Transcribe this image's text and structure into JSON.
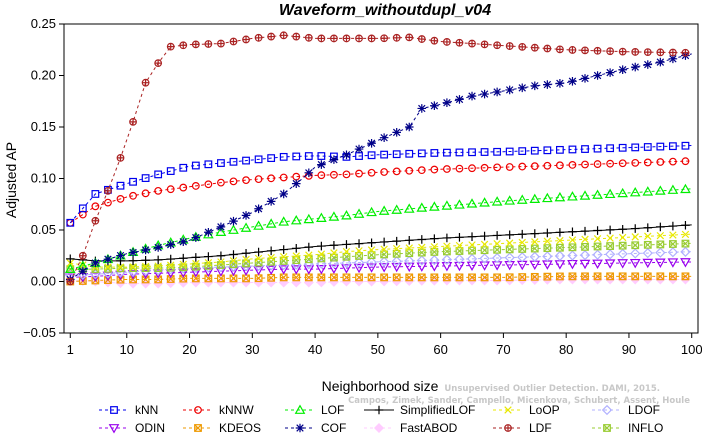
{
  "chart_data": {
    "type": "line",
    "title": "Waveform_withoutdupl_v04",
    "xlabel": "Neighborhood size",
    "ylabel": "Adjusted AP",
    "xlim": [
      0,
      101
    ],
    "ylim": [
      -0.05,
      0.25
    ],
    "x_ticks": [
      1,
      10,
      20,
      30,
      40,
      50,
      60,
      70,
      80,
      90,
      100
    ],
    "y_ticks": [
      -0.05,
      0.0,
      0.05,
      0.1,
      0.15,
      0.2,
      0.25
    ],
    "y_tick_labels": [
      "−0.05",
      "0.00",
      "0.05",
      "0.10",
      "0.15",
      "0.20",
      "0.25"
    ],
    "grid": false,
    "legend_position": "bottom",
    "series": [
      {
        "name": "kNN",
        "color": "#0000ee",
        "marker": "square",
        "dashed": true,
        "x": [
          1,
          5,
          10,
          15,
          20,
          25,
          30,
          35,
          40,
          45,
          50,
          60,
          70,
          80,
          90,
          100
        ],
        "y": [
          0.057,
          0.085,
          0.095,
          0.104,
          0.112,
          0.115,
          0.118,
          0.121,
          0.122,
          0.121,
          0.123,
          0.125,
          0.126,
          0.128,
          0.13,
          0.132
        ]
      },
      {
        "name": "kNNW",
        "color": "#ee0000",
        "marker": "circle",
        "dashed": true,
        "x": [
          1,
          5,
          10,
          15,
          20,
          25,
          30,
          35,
          40,
          45,
          50,
          60,
          70,
          80,
          90,
          100
        ],
        "y": [
          0.057,
          0.073,
          0.082,
          0.088,
          0.092,
          0.096,
          0.099,
          0.101,
          0.103,
          0.104,
          0.106,
          0.109,
          0.111,
          0.113,
          0.115,
          0.117
        ]
      },
      {
        "name": "LOF",
        "color": "#00ee00",
        "marker": "triangle",
        "dashed": true,
        "x": [
          1,
          5,
          10,
          15,
          20,
          25,
          30,
          35,
          40,
          45,
          50,
          60,
          70,
          80,
          90,
          100
        ],
        "y": [
          0.012,
          0.018,
          0.027,
          0.035,
          0.042,
          0.048,
          0.053,
          0.058,
          0.061,
          0.064,
          0.068,
          0.073,
          0.078,
          0.082,
          0.086,
          0.09
        ]
      },
      {
        "name": "SimplifiedLOF",
        "color": "#000000",
        "marker": "plus",
        "dashed": false,
        "x": [
          1,
          5,
          10,
          15,
          20,
          25,
          30,
          35,
          40,
          45,
          50,
          60,
          70,
          80,
          90,
          100
        ],
        "y": [
          0.022,
          0.02,
          0.02,
          0.021,
          0.023,
          0.025,
          0.028,
          0.031,
          0.034,
          0.036,
          0.038,
          0.042,
          0.045,
          0.048,
          0.051,
          0.055
        ]
      },
      {
        "name": "LoOP",
        "color": "#e8e800",
        "marker": "cross",
        "dashed": true,
        "x": [
          1,
          5,
          10,
          15,
          20,
          25,
          30,
          35,
          40,
          45,
          50,
          60,
          70,
          80,
          90,
          100
        ],
        "y": [
          0.018,
          0.014,
          0.014,
          0.015,
          0.017,
          0.019,
          0.022,
          0.024,
          0.026,
          0.029,
          0.031,
          0.034,
          0.037,
          0.04,
          0.043,
          0.046
        ]
      },
      {
        "name": "LDOF",
        "color": "#b0b0ff",
        "marker": "diamond",
        "dashed": true,
        "x": [
          1,
          5,
          10,
          15,
          20,
          25,
          30,
          35,
          40,
          45,
          50,
          60,
          70,
          80,
          90,
          100
        ],
        "y": [
          0.006,
          0.007,
          0.009,
          0.011,
          0.013,
          0.014,
          0.015,
          0.016,
          0.017,
          0.018,
          0.019,
          0.021,
          0.023,
          0.025,
          0.027,
          0.029
        ]
      },
      {
        "name": "ODIN",
        "color": "#9900ee",
        "marker": "inverted-triangle",
        "dashed": true,
        "x": [
          1,
          5,
          10,
          15,
          20,
          25,
          30,
          35,
          40,
          45,
          50,
          60,
          70,
          80,
          90,
          100
        ],
        "y": [
          0.004,
          0.005,
          0.007,
          0.008,
          0.009,
          0.01,
          0.011,
          0.012,
          0.012,
          0.013,
          0.014,
          0.015,
          0.016,
          0.017,
          0.018,
          0.019
        ]
      },
      {
        "name": "KDEOS",
        "color": "#ee9900",
        "marker": "boxed-x",
        "dashed": true,
        "x": [
          1,
          5,
          10,
          15,
          20,
          25,
          30,
          35,
          40,
          45,
          50,
          60,
          70,
          80,
          90,
          100
        ],
        "y": [
          0.0,
          0.001,
          0.002,
          0.002,
          0.003,
          0.003,
          0.003,
          0.004,
          0.004,
          0.004,
          0.004,
          0.004,
          0.004,
          0.005,
          0.005,
          0.005
        ]
      },
      {
        "name": "COF",
        "color": "#000088",
        "marker": "star",
        "dashed": true,
        "x": [
          1,
          5,
          10,
          15,
          20,
          25,
          30,
          35,
          38,
          40,
          42,
          45,
          50,
          55,
          57,
          60,
          65,
          70,
          75,
          80,
          85,
          90,
          95,
          100
        ],
        "y": [
          0.002,
          0.018,
          0.027,
          0.033,
          0.04,
          0.053,
          0.067,
          0.085,
          0.1,
          0.111,
          0.116,
          0.123,
          0.137,
          0.15,
          0.168,
          0.172,
          0.18,
          0.185,
          0.19,
          0.193,
          0.2,
          0.207,
          0.213,
          0.221
        ]
      },
      {
        "name": "FastABOD",
        "color": "#ffccff",
        "marker": "diamond-filled",
        "dashed": true,
        "x": [
          1,
          5,
          10,
          15,
          20,
          25,
          30,
          35,
          40,
          45,
          50,
          60,
          70,
          80,
          90,
          100
        ],
        "y": [
          0.001,
          0.0,
          -0.002,
          -0.002,
          -0.001,
          -0.001,
          -0.001,
          -0.001,
          -0.001,
          0.0,
          0.0,
          0.001,
          0.001,
          0.002,
          0.002,
          0.002
        ]
      },
      {
        "name": "LDF",
        "color": "#aa2222",
        "marker": "circle-plus",
        "dashed": true,
        "x": [
          1,
          3,
          5,
          7,
          9,
          11,
          13,
          15,
          17,
          20,
          25,
          30,
          35,
          40,
          45,
          50,
          55,
          60,
          70,
          80,
          90,
          100
        ],
        "y": [
          0.0,
          0.025,
          0.059,
          0.088,
          0.12,
          0.155,
          0.193,
          0.212,
          0.228,
          0.23,
          0.231,
          0.236,
          0.239,
          0.236,
          0.236,
          0.236,
          0.237,
          0.233,
          0.229,
          0.225,
          0.223,
          0.222
        ]
      },
      {
        "name": "INFLO",
        "color": "#99cc33",
        "marker": "boxed-x",
        "dashed": true,
        "x": [
          1,
          5,
          10,
          15,
          20,
          25,
          30,
          35,
          40,
          45,
          50,
          60,
          70,
          80,
          90,
          100
        ],
        "y": [
          0.012,
          0.012,
          0.013,
          0.013,
          0.014,
          0.016,
          0.018,
          0.02,
          0.022,
          0.024,
          0.026,
          0.029,
          0.031,
          0.033,
          0.035,
          0.037
        ]
      }
    ]
  },
  "legend_rows": [
    [
      "kNN",
      "kNNW",
      "LOF",
      "SimplifiedLOF",
      "LoOP",
      "LDOF"
    ],
    [
      "ODIN",
      "KDEOS",
      "COF",
      "FastABOD",
      "LDF",
      "INFLO"
    ]
  ],
  "watermark": {
    "line1": "Unsupervised Outlier Detection. DAMI, 2015.",
    "line2": "Campos, Zimek, Sander, Campello, Micenkova, Schubert, Assent, Houle"
  }
}
